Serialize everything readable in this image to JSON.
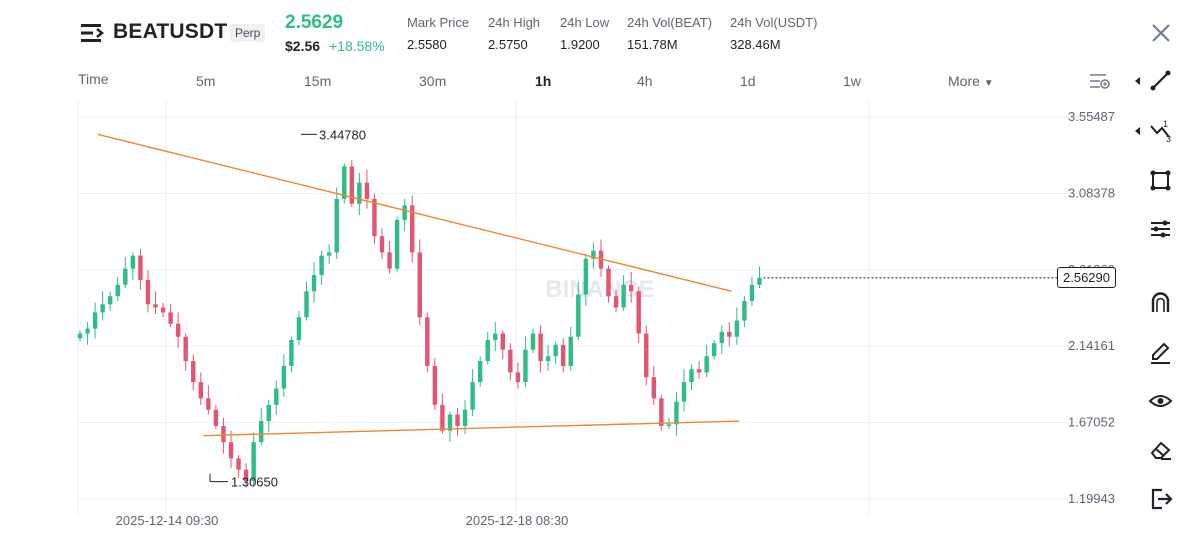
{
  "header": {
    "symbol": "BEATUSDT",
    "badge": "Perp",
    "last_price": "2.5629",
    "usd_price": "$2.56",
    "change_pct": "+18.58%",
    "stats": [
      {
        "label": "Mark Price",
        "value": "2.5580"
      },
      {
        "label": "24h High",
        "value": "2.5750"
      },
      {
        "label": "24h Low",
        "value": "1.9200"
      },
      {
        "label": "24h Vol(BEAT)",
        "value": "151.78M"
      },
      {
        "label": "24h Vol(USDT)",
        "value": "328.46M"
      }
    ]
  },
  "timeframes": {
    "time": "Time",
    "m5": "5m",
    "m15": "15m",
    "m30": "30m",
    "h1": "1h",
    "h4": "4h",
    "d1": "1d",
    "w1": "1w",
    "more": "More",
    "active": "1h"
  },
  "colors": {
    "up": "#2ebd85",
    "down": "#e2566f",
    "trendline": "#f0862f",
    "grid": "#eef0f2"
  },
  "toolbar": {
    "icons": [
      "line-tool-icon",
      "fibonacci-tool-icon",
      "shape-tool-icon",
      "indicator-tool-icon",
      "magnet-icon",
      "pencil-icon",
      "eye-icon",
      "eraser-icon",
      "exit-icon"
    ]
  },
  "chart_data": {
    "type": "candlestick",
    "y_ticks": [
      "3.55487",
      "3.08378",
      "2.61269",
      "2.14161",
      "1.67052",
      "1.19943"
    ],
    "x_ticks": [
      "2025-12-14 09:30",
      "2025-12-18 08:30"
    ],
    "ylim": [
      1.19943,
      3.55487
    ],
    "current_price_label": "2.56290",
    "annotations": {
      "high": "3.44780",
      "low": "1.30650"
    },
    "watermark": "BINANCE",
    "trendlines": [
      {
        "name": "upper",
        "from": [
          1,
          3.4478
        ],
        "to": [
          85,
          2.48
        ]
      },
      {
        "name": "lower",
        "from": [
          15,
          1.59
        ],
        "to": [
          86,
          1.68
        ]
      }
    ],
    "closes": [
      2.22,
      2.25,
      2.35,
      2.4,
      2.45,
      2.52,
      2.62,
      2.7,
      2.55,
      2.4,
      2.38,
      2.35,
      2.28,
      2.2,
      2.05,
      1.92,
      1.82,
      1.75,
      1.65,
      1.55,
      1.45,
      1.38,
      1.31,
      1.55,
      1.68,
      1.78,
      1.88,
      2.02,
      2.18,
      2.32,
      2.48,
      2.58,
      2.7,
      2.72,
      3.05,
      3.25,
      3.02,
      3.15,
      3.05,
      2.82,
      2.72,
      2.62,
      2.92,
      3.01,
      2.72,
      2.32,
      2.02,
      1.78,
      1.62,
      1.72,
      1.65,
      1.75,
      1.92,
      2.05,
      2.18,
      2.22,
      2.12,
      1.98,
      1.92,
      2.12,
      2.22,
      2.05,
      2.08,
      2.15,
      2.02,
      2.2,
      2.46,
      2.68,
      2.73,
      2.62,
      2.45,
      2.38,
      2.52,
      2.48,
      2.22,
      1.95,
      1.82,
      1.65,
      1.66,
      1.8,
      1.92,
      2.0,
      1.98,
      2.08,
      2.16,
      2.23,
      2.2,
      2.3,
      2.42,
      2.52,
      2.5629
    ]
  }
}
